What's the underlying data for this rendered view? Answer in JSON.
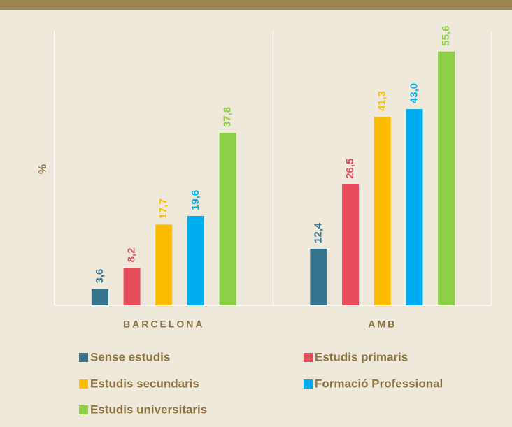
{
  "chart_data": {
    "type": "bar",
    "y_label": "%",
    "categories": [
      "BARCELONA",
      "AMB"
    ],
    "series": [
      {
        "name": "Sense estudis",
        "color": "#35738f",
        "values": [
          3.6,
          12.4
        ],
        "value_labels": [
          "3,6",
          "12,4"
        ]
      },
      {
        "name": "Estudis primaris",
        "color": "#e84c5a",
        "values": [
          8.2,
          26.5
        ],
        "value_labels": [
          "8,2",
          "26,5"
        ]
      },
      {
        "name": "Estudis secundaris",
        "color": "#fdbc00",
        "values": [
          17.7,
          41.3
        ],
        "value_labels": [
          "17,7",
          "41,3"
        ]
      },
      {
        "name": "Formació Professional",
        "color": "#00aeef",
        "values": [
          19.6,
          43.0
        ],
        "value_labels": [
          "19,6",
          "43,0"
        ]
      },
      {
        "name": "Estudis universitaris",
        "color": "#8dcf46",
        "values": [
          37.8,
          55.6
        ],
        "value_labels": [
          "37,8",
          "55,6"
        ]
      }
    ],
    "ylim": [
      0,
      60
    ]
  }
}
